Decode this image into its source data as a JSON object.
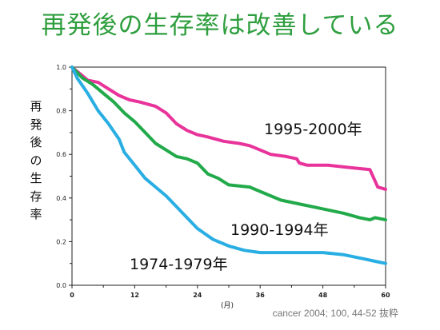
{
  "slide": {
    "title": "再発後の生存率は改善している",
    "citation": "cancer 2004; 100, 44-52 抜粋"
  },
  "chart_data": {
    "type": "line",
    "ylabel": "再発後の生存率",
    "xlabel": "(月)",
    "xlim": [
      0,
      60
    ],
    "ylim": [
      0,
      1
    ],
    "xticks": [
      0,
      12,
      24,
      36,
      48,
      60
    ],
    "yticks": [
      "0.0",
      "0.2",
      "0.4",
      "0.6",
      "0.8",
      "1.0"
    ],
    "grid": false,
    "series": [
      {
        "name": "1995-2000年",
        "color": "#e8339a",
        "x": [
          0,
          2,
          3,
          5,
          7,
          9,
          11,
          13,
          16,
          18,
          20,
          22,
          24,
          26,
          29,
          32,
          34,
          36,
          38,
          41,
          43,
          43.5,
          45,
          49,
          53,
          57,
          58.5,
          60
        ],
        "y": [
          1.0,
          0.96,
          0.94,
          0.93,
          0.9,
          0.87,
          0.85,
          0.84,
          0.82,
          0.79,
          0.74,
          0.71,
          0.69,
          0.68,
          0.66,
          0.65,
          0.64,
          0.62,
          0.6,
          0.59,
          0.58,
          0.56,
          0.55,
          0.55,
          0.54,
          0.53,
          0.45,
          0.44
        ]
      },
      {
        "name": "1990-1994年",
        "color": "#22aa4a",
        "x": [
          0,
          2,
          4,
          6,
          8,
          10,
          12,
          14,
          16,
          18,
          20,
          22,
          24,
          26,
          28,
          30,
          34,
          36,
          38,
          40,
          44,
          48,
          52,
          55,
          57,
          58,
          60
        ],
        "y": [
          1.0,
          0.95,
          0.92,
          0.88,
          0.84,
          0.79,
          0.75,
          0.7,
          0.65,
          0.62,
          0.59,
          0.58,
          0.56,
          0.51,
          0.49,
          0.46,
          0.45,
          0.43,
          0.41,
          0.39,
          0.37,
          0.35,
          0.33,
          0.31,
          0.3,
          0.31,
          0.3
        ]
      },
      {
        "name": "1974-1979年",
        "color": "#29aee3",
        "x": [
          0,
          1,
          3,
          5,
          7,
          9,
          10,
          12,
          14,
          16,
          18,
          20,
          22,
          24,
          27,
          30,
          33,
          36,
          40,
          44,
          48,
          52,
          56,
          58,
          60
        ],
        "y": [
          1.0,
          0.95,
          0.88,
          0.8,
          0.74,
          0.67,
          0.61,
          0.55,
          0.49,
          0.45,
          0.41,
          0.36,
          0.31,
          0.26,
          0.21,
          0.18,
          0.16,
          0.15,
          0.15,
          0.15,
          0.15,
          0.14,
          0.12,
          0.11,
          0.1
        ]
      }
    ]
  }
}
